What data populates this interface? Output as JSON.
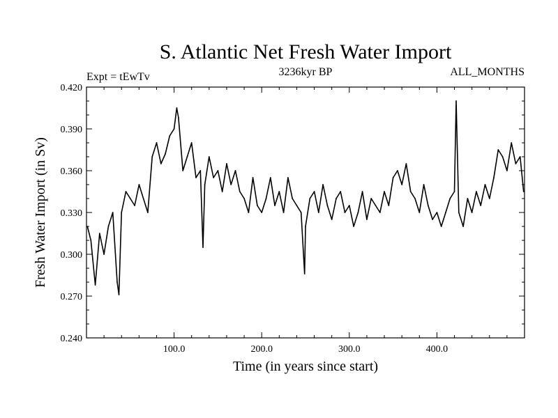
{
  "chart_data": {
    "type": "line",
    "title": "S. Atlantic Net Fresh Water Import",
    "subtitle_left": "Expt = tEwTv",
    "subtitle_center": "3236kyr BP",
    "subtitle_right": "ALL_MONTHS",
    "xlabel": "Time (in years since start)",
    "ylabel": "Fresh Water Import (in Sv)",
    "xlim": [
      0,
      500
    ],
    "ylim": [
      0.24,
      0.42
    ],
    "x_ticks": [
      100,
      200,
      300,
      400
    ],
    "x_tick_labels": [
      "100.0",
      "200.0",
      "300.0",
      "400.0"
    ],
    "y_ticks": [
      0.24,
      0.27,
      0.3,
      0.33,
      0.36,
      0.39,
      0.42
    ],
    "y_tick_labels": [
      "0.240",
      "0.270",
      "0.300",
      "0.330",
      "0.360",
      "0.390",
      "0.420"
    ],
    "series": [
      {
        "name": "Net Fresh Water Import",
        "x": [
          1,
          5,
          10,
          15,
          20,
          25,
          30,
          35,
          37,
          40,
          45,
          50,
          55,
          60,
          65,
          70,
          75,
          80,
          85,
          90,
          95,
          100,
          103,
          105,
          110,
          115,
          120,
          125,
          130,
          133,
          135,
          140,
          145,
          150,
          155,
          160,
          165,
          170,
          175,
          180,
          185,
          190,
          195,
          200,
          205,
          210,
          215,
          220,
          225,
          230,
          235,
          240,
          245,
          249,
          250,
          255,
          260,
          265,
          270,
          275,
          280,
          285,
          290,
          295,
          300,
          305,
          310,
          315,
          320,
          325,
          330,
          335,
          340,
          345,
          350,
          355,
          360,
          365,
          370,
          375,
          380,
          385,
          390,
          395,
          400,
          405,
          410,
          415,
          420,
          422,
          425,
          430,
          435,
          440,
          445,
          450,
          455,
          460,
          465,
          470,
          475,
          480,
          485,
          490,
          495,
          499
        ],
        "values": [
          0.32,
          0.31,
          0.278,
          0.315,
          0.3,
          0.32,
          0.33,
          0.28,
          0.271,
          0.33,
          0.345,
          0.34,
          0.335,
          0.35,
          0.34,
          0.33,
          0.37,
          0.38,
          0.365,
          0.372,
          0.385,
          0.39,
          0.405,
          0.398,
          0.36,
          0.37,
          0.38,
          0.355,
          0.36,
          0.305,
          0.35,
          0.37,
          0.355,
          0.36,
          0.345,
          0.365,
          0.35,
          0.36,
          0.345,
          0.34,
          0.33,
          0.355,
          0.335,
          0.33,
          0.34,
          0.355,
          0.335,
          0.345,
          0.33,
          0.355,
          0.34,
          0.335,
          0.33,
          0.286,
          0.32,
          0.34,
          0.345,
          0.33,
          0.35,
          0.335,
          0.325,
          0.34,
          0.345,
          0.33,
          0.335,
          0.32,
          0.33,
          0.345,
          0.325,
          0.34,
          0.335,
          0.33,
          0.345,
          0.335,
          0.355,
          0.36,
          0.35,
          0.365,
          0.345,
          0.34,
          0.33,
          0.35,
          0.335,
          0.325,
          0.33,
          0.32,
          0.33,
          0.34,
          0.345,
          0.41,
          0.33,
          0.32,
          0.34,
          0.33,
          0.345,
          0.335,
          0.35,
          0.34,
          0.355,
          0.375,
          0.37,
          0.36,
          0.38,
          0.365,
          0.37,
          0.345
        ]
      }
    ]
  }
}
